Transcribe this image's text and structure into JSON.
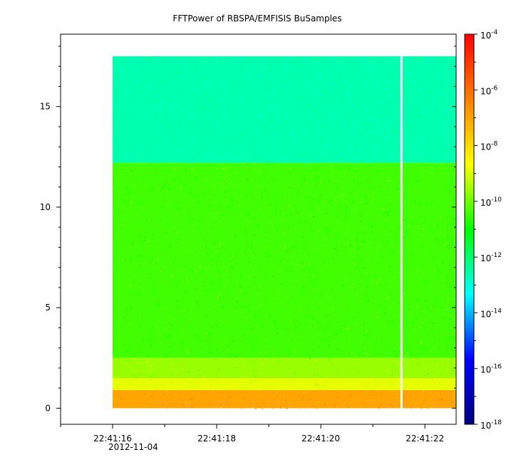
{
  "chart_data": {
    "type": "heatmap",
    "title": "FFTPower of RBSPA/EMFISIS  BuSamples",
    "xlabel": "",
    "ylabel": "",
    "x_ticks": [
      "22:41:16",
      "22:41:18",
      "22:41:20",
      "22:41:22"
    ],
    "x_tick_seconds": [
      16,
      18,
      20,
      22
    ],
    "x_date_label": "2012-11-04",
    "xlim_seconds": [
      15,
      22.6
    ],
    "data_x_range_seconds": [
      16.0,
      22.6
    ],
    "gap_seconds": 21.55,
    "y_ticks": [
      0,
      5,
      10,
      15
    ],
    "ylim": [
      -0.8,
      18.6
    ],
    "data_y_range": [
      0,
      17.5
    ],
    "colorbar": {
      "scale": "log",
      "range_exponent": [
        -18,
        -4
      ],
      "tick_base": "10",
      "tick_exponents": [
        "-4",
        "-6",
        "-8",
        "-10",
        "-12",
        "-14",
        "-16",
        "-18"
      ],
      "tick_values": [
        -4,
        -6,
        -8,
        -10,
        -12,
        -14,
        -16,
        -18
      ],
      "colors": [
        "#00007f",
        "#0000ff",
        "#00ffff",
        "#00ff00",
        "#ffff00",
        "#ff7f00",
        "#ff0000"
      ]
    },
    "bands": [
      {
        "y_from": 12.2,
        "y_to": 17.5,
        "log_power": -12.6
      },
      {
        "y_from": 2.5,
        "y_to": 12.2,
        "log_power": -10.4
      },
      {
        "y_from": 1.5,
        "y_to": 2.5,
        "log_power": -9.6
      },
      {
        "y_from": 0.9,
        "y_to": 1.5,
        "log_power": -8.9
      },
      {
        "y_from": 0.0,
        "y_to": 0.9,
        "log_power": -7.0
      }
    ]
  }
}
